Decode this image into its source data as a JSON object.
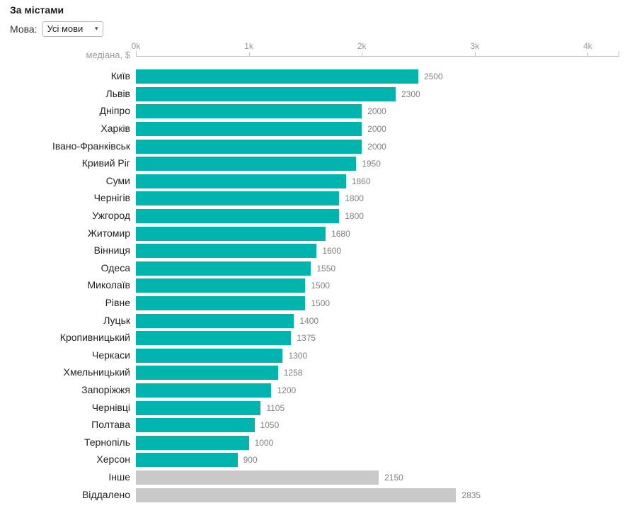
{
  "page": {
    "title": "За містами"
  },
  "controls": {
    "language_label": "Мова:",
    "language_value": "Усі мови",
    "dropdown_arrow": "▾"
  },
  "chart_data": {
    "type": "bar",
    "orientation": "horizontal",
    "title": "За містами",
    "axis_label": "медіана, $",
    "tick_labels": [
      "0k",
      "1k",
      "2k",
      "3k",
      "4k"
    ],
    "tick_values": [
      0,
      1000,
      2000,
      3000,
      4000
    ],
    "xlim": [
      0,
      4280
    ],
    "grid": false,
    "categories": [
      "Київ",
      "Львів",
      "Дніпро",
      "Харків",
      "Івано-Франківськ",
      "Кривий Ріг",
      "Суми",
      "Чернігів",
      "Ужгород",
      "Житомир",
      "Вінниця",
      "Одеса",
      "Миколаїв",
      "Рівне",
      "Луцьк",
      "Кропивницький",
      "Черкаси",
      "Хмельницький",
      "Запоріжжя",
      "Чернівці",
      "Полтава",
      "Тернопіль",
      "Херсон",
      "Інше",
      "Віддалено"
    ],
    "values": [
      2500,
      2300,
      2000,
      2000,
      2000,
      1950,
      1860,
      1800,
      1800,
      1680,
      1600,
      1550,
      1500,
      1500,
      1400,
      1375,
      1300,
      1258,
      1200,
      1105,
      1050,
      1000,
      900,
      2150,
      2835
    ],
    "muted_categories": [
      "Інше",
      "Віддалено"
    ],
    "colors": {
      "bar": "#00b5ad",
      "muted_bar": "#c9c9c9",
      "value_label": "#808080",
      "tick_label": "#999999",
      "axis_line": "#bdbdbd",
      "category_label": "#222222"
    }
  }
}
